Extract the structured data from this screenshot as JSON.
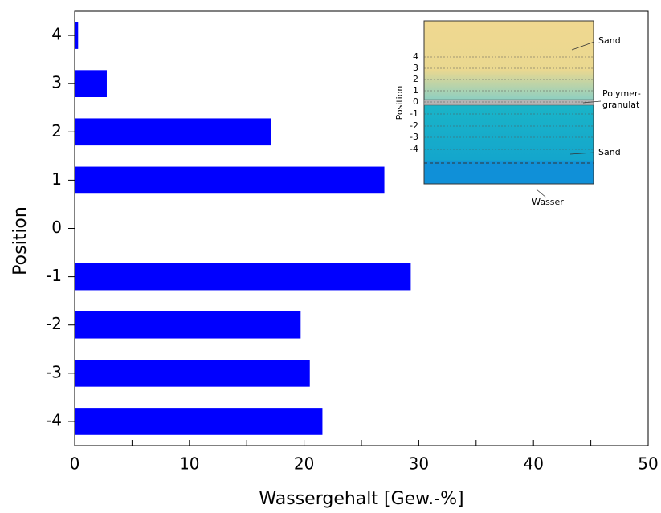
{
  "chart_data": {
    "type": "barh",
    "x_label": "Wassergehalt [Gew.-%]",
    "y_label": "Position",
    "categories": [
      "4",
      "3",
      "2",
      "1",
      "0",
      "-1",
      "-2",
      "-3",
      "-4"
    ],
    "values": [
      0.3,
      2.8,
      17.1,
      27.0,
      null,
      29.3,
      19.7,
      20.5,
      21.6
    ],
    "color": "#0000ff",
    "xlim": [
      0,
      50
    ],
    "xticks": [
      0,
      10,
      20,
      30,
      40,
      50
    ],
    "xminorticks": [
      5,
      15,
      25,
      35,
      45
    ]
  },
  "inset": {
    "axis_label": "Position",
    "ticks": [
      "4",
      "3",
      "2",
      "1",
      "0",
      "-1",
      "-2",
      "-3",
      "-4"
    ],
    "sand_top": "Sand",
    "polymer_1": "Polymer-",
    "polymer_2": "granulat",
    "sand_bottom": "Sand",
    "water": "Wasser"
  }
}
